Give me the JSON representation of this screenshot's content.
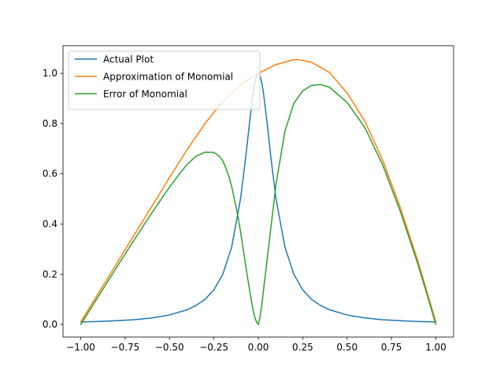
{
  "chart_data": {
    "type": "line",
    "title": "",
    "xlabel": "",
    "ylabel": "",
    "xlim": [
      -1.1,
      1.1
    ],
    "ylim": [
      -0.05,
      1.11
    ],
    "grid": false,
    "legend_placement": "top-left",
    "x_ticks": [
      {
        "value": -1.0,
        "label": "−1.00"
      },
      {
        "value": -0.75,
        "label": "−0.75"
      },
      {
        "value": -0.5,
        "label": "−0.50"
      },
      {
        "value": -0.25,
        "label": "−0.25"
      },
      {
        "value": 0.0,
        "label": "0.00"
      },
      {
        "value": 0.25,
        "label": "0.25"
      },
      {
        "value": 0.5,
        "label": "0.50"
      },
      {
        "value": 0.75,
        "label": "0.75"
      },
      {
        "value": 1.0,
        "label": "1.00"
      }
    ],
    "y_ticks": [
      {
        "value": 0.0,
        "label": "0.0"
      },
      {
        "value": 0.2,
        "label": "0.2"
      },
      {
        "value": 0.4,
        "label": "0.4"
      },
      {
        "value": 0.6,
        "label": "0.6"
      },
      {
        "value": 0.8,
        "label": "0.8"
      },
      {
        "value": 1.0,
        "label": "1.0"
      }
    ],
    "series": [
      {
        "name": "Actual Plot",
        "color": "#1f77b4",
        "x": [
          -1.0,
          -0.9,
          -0.8,
          -0.7,
          -0.6,
          -0.5,
          -0.4,
          -0.35,
          -0.3,
          -0.25,
          -0.2,
          -0.15,
          -0.1,
          -0.07,
          -0.05,
          -0.03,
          -0.02,
          -0.01,
          0.0,
          0.01,
          0.02,
          0.03,
          0.05,
          0.07,
          0.1,
          0.15,
          0.2,
          0.25,
          0.3,
          0.35,
          0.4,
          0.5,
          0.6,
          0.7,
          0.8,
          0.9,
          1.0
        ],
        "y": [
          0.01,
          0.012,
          0.015,
          0.019,
          0.026,
          0.038,
          0.059,
          0.076,
          0.1,
          0.138,
          0.2,
          0.308,
          0.5,
          0.671,
          0.8,
          0.917,
          0.962,
          0.99,
          1.0,
          0.99,
          0.962,
          0.917,
          0.8,
          0.671,
          0.5,
          0.308,
          0.2,
          0.138,
          0.1,
          0.076,
          0.059,
          0.038,
          0.026,
          0.019,
          0.015,
          0.012,
          0.01
        ]
      },
      {
        "name": "Approximation of Monomial",
        "color": "#ff7f0e",
        "x": [
          -1.0,
          -0.9,
          -0.8,
          -0.7,
          -0.6,
          -0.5,
          -0.4,
          -0.3,
          -0.25,
          -0.2,
          -0.1,
          0.0,
          0.1,
          0.2,
          0.22,
          0.3,
          0.4,
          0.5,
          0.6,
          0.7,
          0.8,
          0.9,
          0.95,
          1.0
        ],
        "y": [
          0.01,
          0.125,
          0.24,
          0.355,
          0.47,
          0.585,
          0.697,
          0.8,
          0.845,
          0.887,
          0.955,
          1.0,
          1.035,
          1.054,
          1.055,
          1.044,
          1.004,
          0.922,
          0.81,
          0.655,
          0.465,
          0.25,
          0.13,
          0.01
        ]
      },
      {
        "name": "Error of Monomial",
        "color": "#2ca02c",
        "x": [
          -1.0,
          -0.9,
          -0.8,
          -0.7,
          -0.6,
          -0.5,
          -0.45,
          -0.4,
          -0.35,
          -0.3,
          -0.25,
          -0.22,
          -0.2,
          -0.17,
          -0.15,
          -0.12,
          -0.1,
          -0.07,
          -0.05,
          -0.03,
          -0.02,
          -0.01,
          0.0,
          0.01,
          0.02,
          0.03,
          0.05,
          0.07,
          0.1,
          0.15,
          0.2,
          0.25,
          0.3,
          0.35,
          0.4,
          0.5,
          0.6,
          0.7,
          0.8,
          0.9,
          0.95,
          1.0
        ],
        "y": [
          0.0,
          0.113,
          0.225,
          0.336,
          0.444,
          0.547,
          0.594,
          0.638,
          0.67,
          0.686,
          0.685,
          0.67,
          0.652,
          0.6,
          0.55,
          0.45,
          0.37,
          0.23,
          0.14,
          0.06,
          0.03,
          0.01,
          0.0,
          0.03,
          0.08,
          0.14,
          0.26,
          0.38,
          0.56,
          0.77,
          0.88,
          0.93,
          0.952,
          0.955,
          0.945,
          0.884,
          0.784,
          0.636,
          0.45,
          0.238,
          0.12,
          0.0
        ]
      }
    ]
  }
}
